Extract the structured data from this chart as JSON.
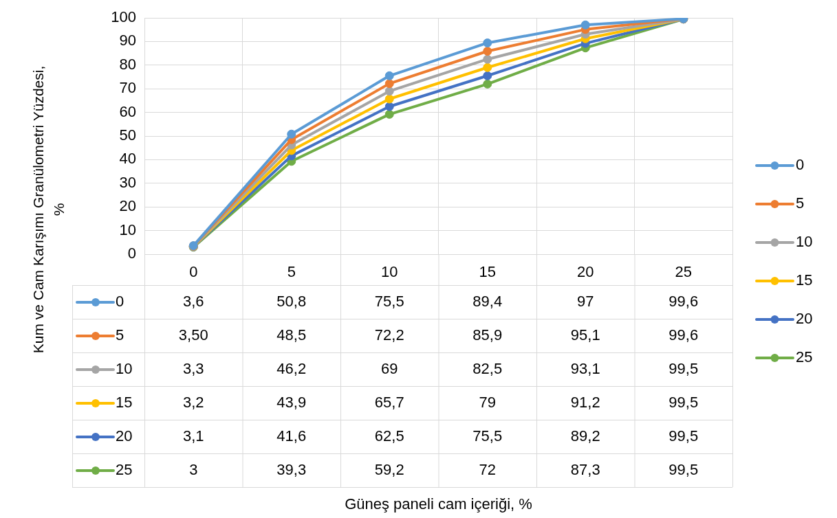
{
  "chart_data": {
    "type": "line",
    "annotations": [
      "Güneş paneli cam içeriği, %"
    ],
    "ylabel": "Kum ve Cam Karışımı Granülometri Yüzdesi, %",
    "categories": [
      "0",
      "5",
      "10",
      "15",
      "20",
      "25"
    ],
    "ylim": [
      0,
      100
    ],
    "yticks": [
      0,
      10,
      20,
      30,
      40,
      50,
      60,
      70,
      80,
      90,
      100
    ],
    "grid": true,
    "legend": "right",
    "marker": "circle",
    "line_style": "solid",
    "series": [
      {
        "name": "0",
        "color": "#5b9bd5",
        "values": [
          3.6,
          50.8,
          75.5,
          89.4,
          97,
          99.6
        ],
        "value_labels": [
          "3,6",
          "50,8",
          "75,5",
          "89,4",
          "97",
          "99,6"
        ]
      },
      {
        "name": "5",
        "color": "#ed7d31",
        "values": [
          3.5,
          48.5,
          72.2,
          85.9,
          95.1,
          99.6
        ],
        "value_labels": [
          "3,50",
          "48,5",
          "72,2",
          "85,9",
          "95,1",
          "99,6"
        ]
      },
      {
        "name": "10",
        "color": "#a5a5a5",
        "values": [
          3.3,
          46.2,
          69,
          82.5,
          93.1,
          99.5
        ],
        "value_labels": [
          "3,3",
          "46,2",
          "69",
          "82,5",
          "93,1",
          "99,5"
        ]
      },
      {
        "name": "15",
        "color": "#ffc000",
        "values": [
          3.2,
          43.9,
          65.7,
          79,
          91.2,
          99.5
        ],
        "value_labels": [
          "3,2",
          "43,9",
          "65,7",
          "79",
          "91,2",
          "99,5"
        ]
      },
      {
        "name": "20",
        "color": "#4472c4",
        "values": [
          3.1,
          41.6,
          62.5,
          75.5,
          89.2,
          99.5
        ],
        "value_labels": [
          "3,1",
          "41,6",
          "62,5",
          "75,5",
          "89,2",
          "99,5"
        ]
      },
      {
        "name": "25",
        "color": "#70ad47",
        "values": [
          3,
          39.3,
          59.2,
          72,
          87.3,
          99.5
        ],
        "value_labels": [
          "3",
          "39,3",
          "59,2",
          "72",
          "87,3",
          "99,5"
        ]
      }
    ]
  }
}
